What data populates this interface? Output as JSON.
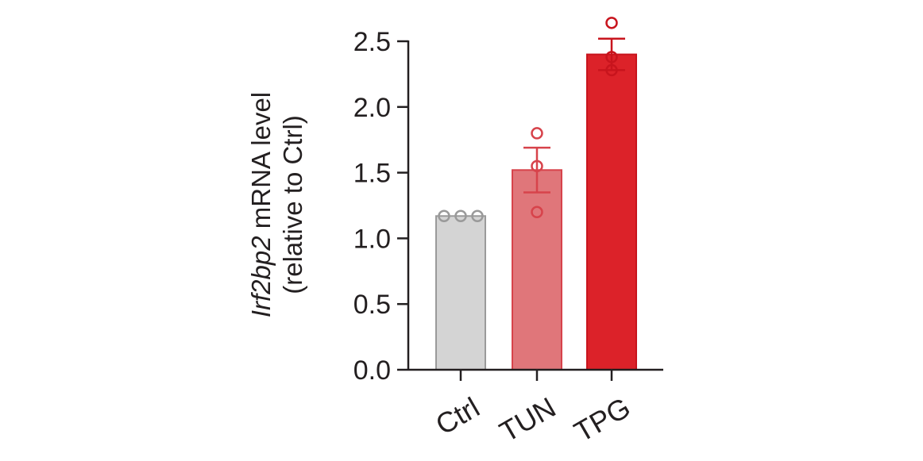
{
  "chart_data": {
    "type": "bar",
    "categories": [
      "Ctrl",
      "TUN",
      "TPG"
    ],
    "values": [
      1.17,
      1.52,
      2.4
    ],
    "errors": [
      0.0,
      0.17,
      0.12
    ],
    "points": [
      [
        1.17,
        1.17,
        1.17
      ],
      [
        1.8,
        1.55,
        1.2
      ],
      [
        2.64,
        2.38,
        2.28
      ]
    ],
    "bar_colors": [
      "#d4d4d4",
      "#e0767a",
      "#dc2229"
    ],
    "edge_colors": [
      "#9a9a9a",
      "#d7434b",
      "#c8141d"
    ],
    "ylabel_italic": "Irf2bp2",
    "ylabel_rest": " mRNA level",
    "ylabel_line2": "(relative to Ctrl)",
    "ylim": [
      0,
      2.5
    ],
    "yticks": [
      "0.0",
      "0.5",
      "1.0",
      "1.5",
      "2.0",
      "2.5"
    ],
    "grid": false
  }
}
